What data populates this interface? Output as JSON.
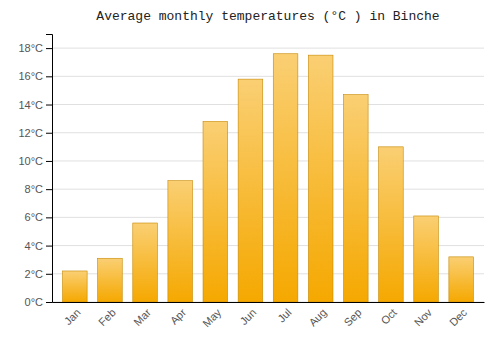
{
  "chart_data": {
    "type": "bar",
    "title": "Average monthly temperatures (°C ) in Binche",
    "categories": [
      "Jan",
      "Feb",
      "Mar",
      "Apr",
      "May",
      "Jun",
      "Jul",
      "Aug",
      "Sep",
      "Oct",
      "Nov",
      "Dec"
    ],
    "values": [
      2.2,
      3.1,
      5.6,
      8.6,
      12.8,
      15.8,
      17.6,
      17.5,
      14.7,
      11.0,
      6.1,
      3.2
    ],
    "color": "#F5A800",
    "ylim": [
      0,
      19
    ],
    "yticks": [
      {
        "value": 0,
        "label": "0°C"
      },
      {
        "value": 2,
        "label": "2°C"
      },
      {
        "value": 4,
        "label": "4°C"
      },
      {
        "value": 6,
        "label": "6°C"
      },
      {
        "value": 8,
        "label": "8°C"
      },
      {
        "value": 10,
        "label": "10°C"
      },
      {
        "value": 12,
        "label": "12°C"
      },
      {
        "value": 14,
        "label": "14°C"
      },
      {
        "value": 16,
        "label": "16°C"
      },
      {
        "value": 18,
        "label": "18°C"
      }
    ],
    "grid": true
  }
}
